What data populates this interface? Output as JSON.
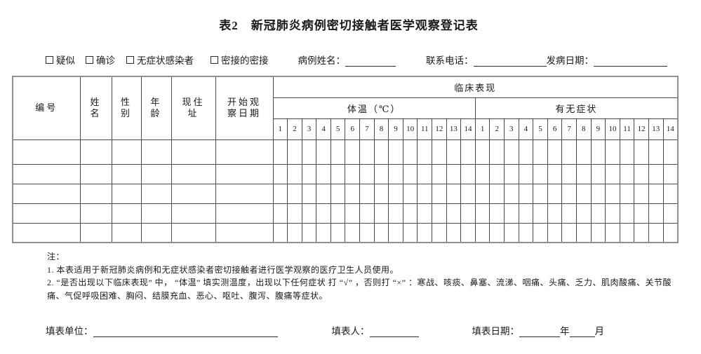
{
  "title": "表2　新冠肺炎病例密切接触者医学观察登记表",
  "case_info": {
    "checkboxes": [
      {
        "label": "疑似",
        "checked": false
      },
      {
        "label": "确诊",
        "checked": false
      },
      {
        "label": "无症状感染者",
        "checked": false
      },
      {
        "label": "密接的密接",
        "checked": false
      }
    ],
    "name_label": "病例姓名：",
    "name_value": "",
    "phone_label": "联系电话：",
    "phone_value": "",
    "onset_label": "发病日期：",
    "onset_value": ""
  },
  "table": {
    "headers": [
      "编号",
      "姓名",
      "性别",
      "年龄",
      "现住址",
      "开始观察日期"
    ],
    "clinical_label": "临床表现",
    "subgroups": [
      {
        "label": "体温（℃）",
        "days": [
          "1",
          "2",
          "3",
          "4",
          "5",
          "6",
          "7",
          "8",
          "9",
          "10",
          "11",
          "12",
          "13",
          "14"
        ]
      },
      {
        "label": "有无症状",
        "days": [
          "1",
          "2",
          "3",
          "4",
          "5",
          "6",
          "7",
          "8",
          "9",
          "10",
          "11",
          "12",
          "13",
          "14"
        ]
      }
    ],
    "empty_rows": 5
  },
  "notes": {
    "heading": "注：",
    "items": [
      "1. 本表适用于新冠肺炎病例和无症状感染者密切接触者进行医学观察的医疗卫生人员使用。",
      "2. “是否出现以下临床表现” 中， “体温” 填实测温度，出现以下任何症状 打 “√” ，否则打 “×” ：寒战、咳痰、鼻塞、流涕、咽痛、头痛、乏力、肌肉酸痛、关节酸痛、气促呼吸困难、胸闷、结膜充血、恶心、呕吐、腹泻、腹痛等症状。"
    ]
  },
  "footer": {
    "unit_label": "填表单位：",
    "unit_value": "",
    "person_label": "填表人：",
    "person_value": "",
    "date_label": "填表日期：",
    "year_label": "年",
    "month_label": "月"
  }
}
